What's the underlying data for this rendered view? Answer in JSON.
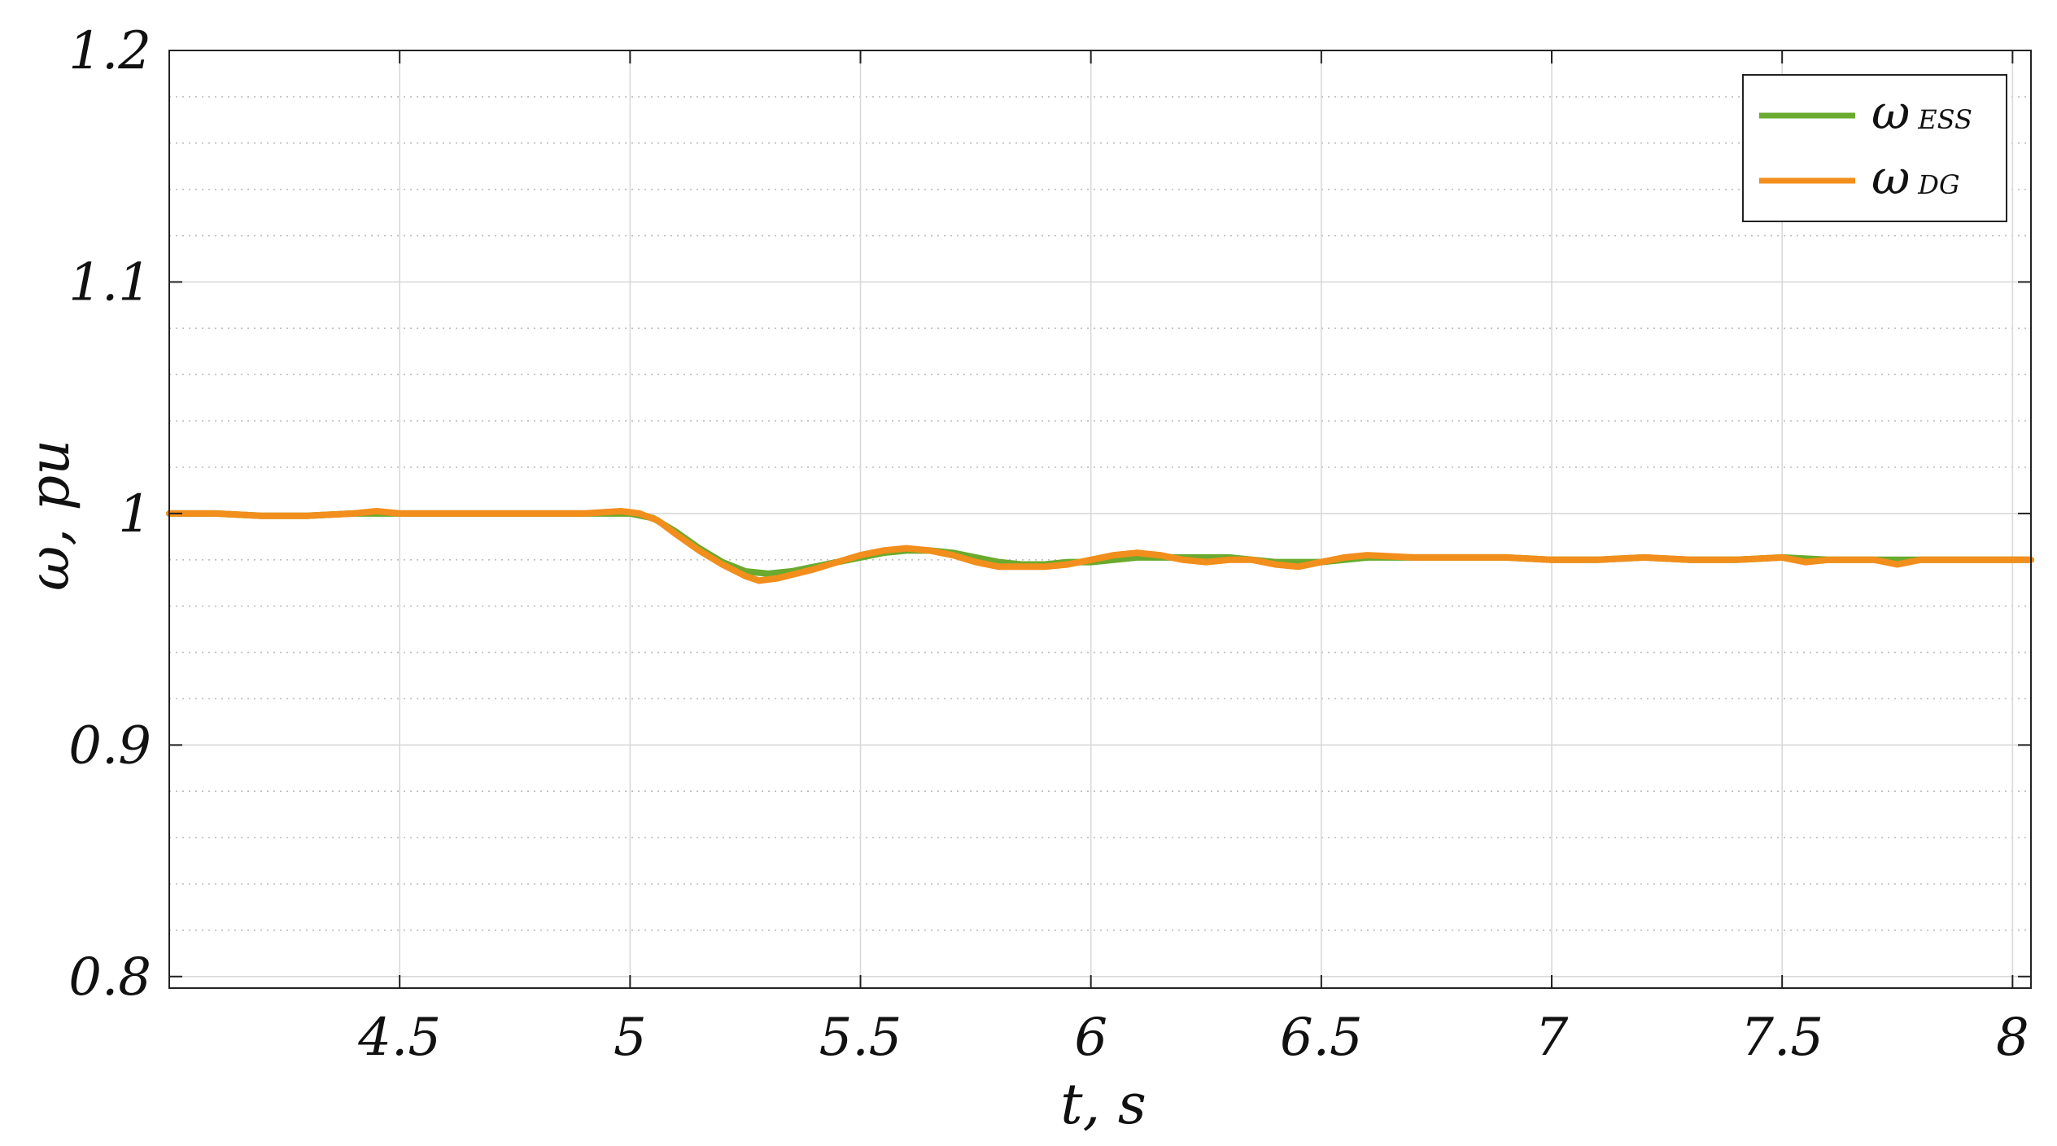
{
  "chart_data": {
    "type": "line",
    "xlabel": "t, s",
    "ylabel": "ω, pu",
    "xlim": [
      4.0,
      8.04
    ],
    "ylim": [
      0.795,
      1.2
    ],
    "xticks": [
      4.5,
      5,
      5.5,
      6,
      6.5,
      7,
      7.5,
      8
    ],
    "xtick_labels": [
      "4.5",
      "5",
      "5.5",
      "6",
      "6.5",
      "7",
      "7.5",
      "8"
    ],
    "yticks": [
      0.8,
      0.9,
      1.0,
      1.1,
      1.2
    ],
    "ytick_labels": [
      "0.8",
      "0.9",
      "1",
      "1.1",
      "1.2"
    ],
    "grid": true,
    "minor_y_grid_step": 0.02,
    "legend_position": "top-right",
    "series": [
      {
        "name": "ω",
        "subscript": "ESS",
        "color": "#6aaa2e",
        "points": [
          [
            4.0,
            1.0
          ],
          [
            4.1,
            1.0
          ],
          [
            4.2,
            0.999
          ],
          [
            4.3,
            0.999
          ],
          [
            4.4,
            1.0
          ],
          [
            4.5,
            1.0
          ],
          [
            4.6,
            1.0
          ],
          [
            4.7,
            1.0
          ],
          [
            4.8,
            1.0
          ],
          [
            4.9,
            1.0
          ],
          [
            5.0,
            1.0
          ],
          [
            5.05,
            0.998
          ],
          [
            5.1,
            0.992
          ],
          [
            5.15,
            0.985
          ],
          [
            5.2,
            0.979
          ],
          [
            5.25,
            0.975
          ],
          [
            5.3,
            0.974
          ],
          [
            5.35,
            0.975
          ],
          [
            5.4,
            0.977
          ],
          [
            5.45,
            0.979
          ],
          [
            5.5,
            0.981
          ],
          [
            5.55,
            0.983
          ],
          [
            5.6,
            0.984
          ],
          [
            5.65,
            0.984
          ],
          [
            5.7,
            0.983
          ],
          [
            5.75,
            0.981
          ],
          [
            5.8,
            0.979
          ],
          [
            5.85,
            0.978
          ],
          [
            5.9,
            0.978
          ],
          [
            5.95,
            0.979
          ],
          [
            6.0,
            0.979
          ],
          [
            6.1,
            0.981
          ],
          [
            6.2,
            0.981
          ],
          [
            6.3,
            0.981
          ],
          [
            6.4,
            0.979
          ],
          [
            6.5,
            0.979
          ],
          [
            6.6,
            0.981
          ],
          [
            6.7,
            0.981
          ],
          [
            6.8,
            0.981
          ],
          [
            6.9,
            0.981
          ],
          [
            7.0,
            0.98
          ],
          [
            7.1,
            0.98
          ],
          [
            7.2,
            0.981
          ],
          [
            7.3,
            0.98
          ],
          [
            7.4,
            0.98
          ],
          [
            7.5,
            0.981
          ],
          [
            7.6,
            0.98
          ],
          [
            7.7,
            0.98
          ],
          [
            7.8,
            0.98
          ],
          [
            7.9,
            0.98
          ],
          [
            8.04,
            0.98
          ]
        ]
      },
      {
        "name": "ω",
        "subscript": "DG",
        "color": "#f28e1c",
        "points": [
          [
            4.0,
            1.0
          ],
          [
            4.1,
            1.0
          ],
          [
            4.2,
            0.999
          ],
          [
            4.3,
            0.999
          ],
          [
            4.4,
            1.0
          ],
          [
            4.45,
            1.001
          ],
          [
            4.5,
            1.0
          ],
          [
            4.6,
            1.0
          ],
          [
            4.7,
            1.0
          ],
          [
            4.8,
            1.0
          ],
          [
            4.9,
            1.0
          ],
          [
            4.98,
            1.001
          ],
          [
            5.02,
            1.0
          ],
          [
            5.06,
            0.997
          ],
          [
            5.1,
            0.991
          ],
          [
            5.15,
            0.984
          ],
          [
            5.2,
            0.978
          ],
          [
            5.25,
            0.973
          ],
          [
            5.28,
            0.971
          ],
          [
            5.32,
            0.972
          ],
          [
            5.4,
            0.976
          ],
          [
            5.45,
            0.979
          ],
          [
            5.5,
            0.982
          ],
          [
            5.55,
            0.984
          ],
          [
            5.6,
            0.985
          ],
          [
            5.65,
            0.984
          ],
          [
            5.7,
            0.982
          ],
          [
            5.75,
            0.979
          ],
          [
            5.8,
            0.977
          ],
          [
            5.85,
            0.977
          ],
          [
            5.9,
            0.977
          ],
          [
            5.95,
            0.978
          ],
          [
            6.0,
            0.98
          ],
          [
            6.05,
            0.982
          ],
          [
            6.1,
            0.983
          ],
          [
            6.15,
            0.982
          ],
          [
            6.2,
            0.98
          ],
          [
            6.25,
            0.979
          ],
          [
            6.3,
            0.98
          ],
          [
            6.35,
            0.98
          ],
          [
            6.4,
            0.978
          ],
          [
            6.45,
            0.977
          ],
          [
            6.5,
            0.979
          ],
          [
            6.55,
            0.981
          ],
          [
            6.6,
            0.982
          ],
          [
            6.7,
            0.981
          ],
          [
            6.8,
            0.981
          ],
          [
            6.9,
            0.981
          ],
          [
            7.0,
            0.98
          ],
          [
            7.1,
            0.98
          ],
          [
            7.2,
            0.981
          ],
          [
            7.3,
            0.98
          ],
          [
            7.4,
            0.98
          ],
          [
            7.5,
            0.981
          ],
          [
            7.55,
            0.979
          ],
          [
            7.6,
            0.98
          ],
          [
            7.7,
            0.98
          ],
          [
            7.75,
            0.978
          ],
          [
            7.8,
            0.98
          ],
          [
            7.9,
            0.98
          ],
          [
            8.04,
            0.98
          ]
        ]
      }
    ]
  }
}
